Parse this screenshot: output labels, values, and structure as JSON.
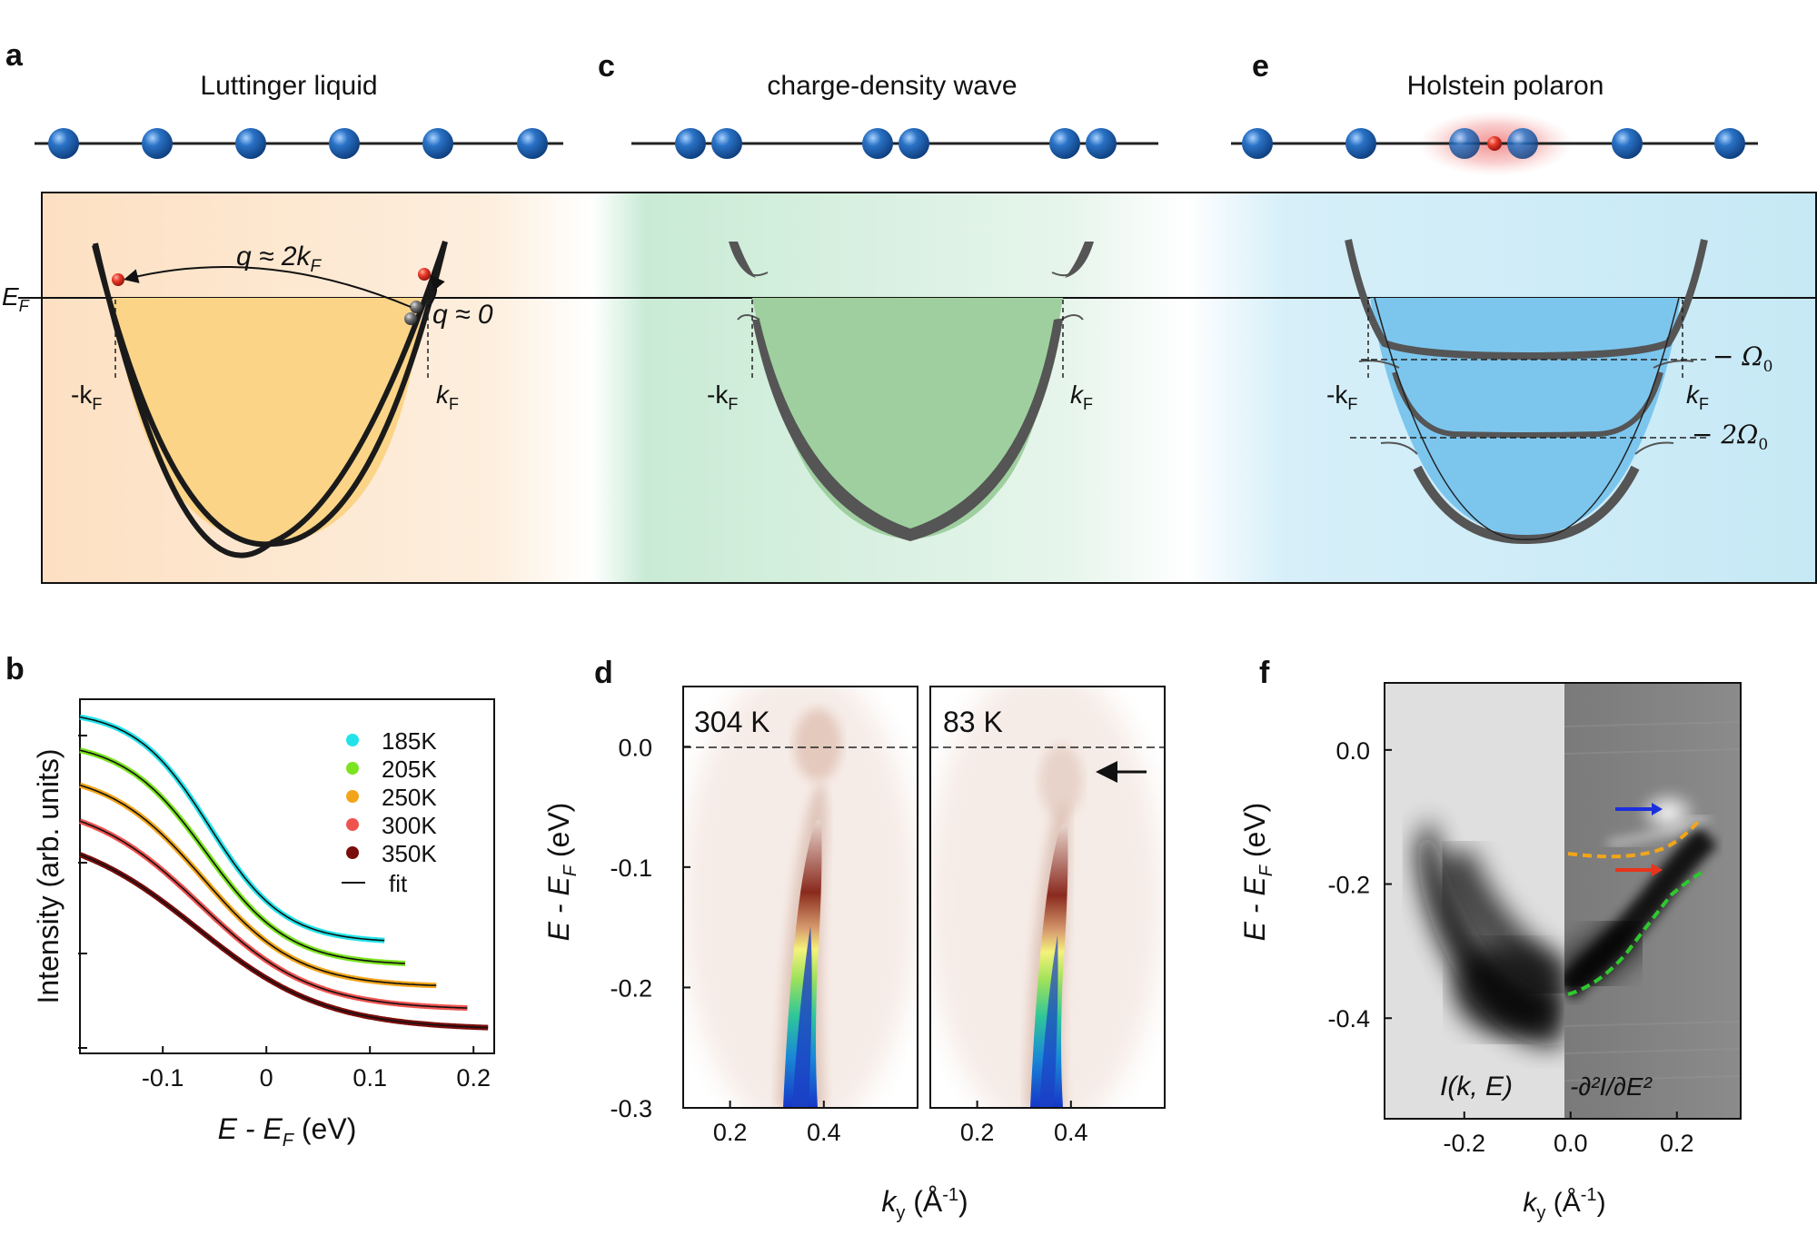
{
  "panel_letters": {
    "a": "a",
    "b": "b",
    "c": "c",
    "d": "d",
    "e": "e",
    "f": "f"
  },
  "panel_a": {
    "title": "Luttinger liquid",
    "ef_label": "E",
    "ef_sub": "F",
    "q_large": "q ≈ 2k",
    "q_large_sub": "F",
    "q_small": "q ≈ 0",
    "neg_kf": "-k",
    "pos_kf": "k",
    "kf_sub": "F"
  },
  "panel_c": {
    "title": "charge-density wave",
    "neg_kf": "-k",
    "pos_kf": "k",
    "kf_sub": "F"
  },
  "panel_e": {
    "title": "Holstein polaron",
    "neg_kf": "-k",
    "pos_kf": "k",
    "kf_sub": "F",
    "omega1": "− Ω",
    "omega2": "− 2Ω",
    "omega_sub": "0"
  },
  "panel_b": {
    "ylabel": "Intensity (arb. units)",
    "xlabel": "E - E",
    "xlabel_sub": "F",
    "xlabel_unit": " (eV)",
    "fit_label": "fit"
  },
  "panel_d": {
    "ylabel_main": "E - E",
    "ylabel_sub": "F",
    "ylabel_unit": " (eV)",
    "xlabel_main": "k",
    "xlabel_sub": "y",
    "xlabel_unit": " (Å",
    "xlabel_exp": "-1",
    "xlabel_close": ")",
    "left_temp": "304 K",
    "right_temp": "83 K"
  },
  "panel_f": {
    "ylabel_main": "E - E",
    "ylabel_sub": "F",
    "ylabel_unit": " (eV)",
    "xlabel_main": "k",
    "xlabel_sub": "y",
    "xlabel_unit": " (Å",
    "xlabel_exp": "-1",
    "xlabel_close": ")",
    "left_label": "I(k, E)",
    "right_label": "-∂²I/∂E²"
  },
  "colors": {
    "cyan": "#22e3ea",
    "green": "#7be31f",
    "orange": "#f2a51a",
    "red": "#ef5350",
    "darkred": "#7a0c0c",
    "atom_blue": "#1f5fa8",
    "bg_orange": "#fde3c6",
    "bg_green": "#cdebd8",
    "bg_blue": "#c9ebf6"
  },
  "chart_data": [
    {
      "id": "b",
      "type": "line",
      "xlabel": "E - EF (eV)",
      "ylabel": "Intensity (arb. units)",
      "xlim": [
        -0.18,
        0.22
      ],
      "xticks": [
        "-0.1",
        "0",
        "0.1",
        "0.2"
      ],
      "xtick_values": [
        -0.1,
        0,
        0.1,
        0.2
      ],
      "series": [
        {
          "name": "185K",
          "color": "#22e3ea",
          "x_end": 0.115,
          "offset": 4,
          "width": 0.036
        },
        {
          "name": "205K",
          "color": "#7be31f",
          "x_end": 0.135,
          "offset": 3,
          "width": 0.04
        },
        {
          "name": "250K",
          "color": "#f2a51a",
          "x_end": 0.165,
          "offset": 2,
          "width": 0.046
        },
        {
          "name": "300K",
          "color": "#ef5350",
          "x_end": 0.195,
          "offset": 1,
          "width": 0.054
        },
        {
          "name": "350K",
          "color": "#7a0c0c",
          "x_end": 0.215,
          "offset": 0,
          "width": 0.062
        }
      ],
      "fit": "fit"
    },
    {
      "id": "d",
      "type": "heatmap",
      "xlabel": "ky (Å-1)",
      "ylabel": "E - EF (eV)",
      "ylim": [
        -0.3,
        0.05
      ],
      "yticks": [
        "0.0",
        "-0.1",
        "-0.2",
        "-0.3"
      ],
      "ytick_values": [
        0.0,
        -0.1,
        -0.2,
        -0.3
      ],
      "xlim": [
        0.1,
        0.6
      ],
      "xticks": [
        "0.2",
        "0.4"
      ],
      "xtick_values": [
        0.2,
        0.4
      ],
      "panels": [
        "304 K",
        "83 K"
      ]
    },
    {
      "id": "f",
      "type": "heatmap",
      "xlabel": "ky (Å-1)",
      "ylabel": "E - EF (eV)",
      "ylim": [
        -0.55,
        0.1
      ],
      "yticks": [
        "0.0",
        "-0.2",
        "-0.4"
      ],
      "ytick_values": [
        0.0,
        -0.2,
        -0.4
      ],
      "xlim": [
        -0.35,
        0.32
      ],
      "xticks": [
        "-0.2",
        "0.0",
        "0.2"
      ],
      "xtick_values": [
        -0.2,
        0.0,
        0.2
      ]
    }
  ]
}
